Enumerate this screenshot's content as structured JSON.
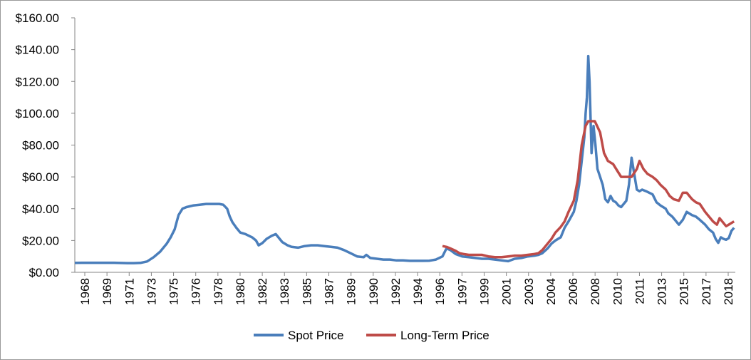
{
  "chart_data": {
    "type": "line",
    "title": "",
    "xlabel": "",
    "ylabel": "",
    "ylim": [
      0,
      160
    ],
    "xlim": [
      1968,
      2018.3
    ],
    "grid": false,
    "legend": "bottom",
    "y_ticks": [
      "$0.00",
      "$20.00",
      "$40.00",
      "$60.00",
      "$80.00",
      "$100.00",
      "$120.00",
      "$140.00",
      "$160.00"
    ],
    "x_tick_labels": [
      "1968",
      "1969",
      "1971",
      "1973",
      "1975",
      "1976",
      "1978",
      "1980",
      "1982",
      "1983",
      "1985",
      "1987",
      "1989",
      "1990",
      "1992",
      "1994",
      "1996",
      "1997",
      "1999",
      "2001",
      "2003",
      "2004",
      "2006",
      "2008",
      "2010",
      "2011",
      "2013",
      "2015",
      "2017",
      "2018"
    ],
    "series": [
      {
        "name": "Spot Price",
        "color": "#4a7ebb",
        "x": [
          1968.0,
          1968.5,
          1969.0,
          1970.0,
          1971.0,
          1972.0,
          1972.5,
          1973.0,
          1973.5,
          1974.0,
          1974.5,
          1975.0,
          1975.3,
          1975.6,
          1975.9,
          1976.2,
          1976.5,
          1977.0,
          1977.5,
          1978.0,
          1978.5,
          1979.0,
          1979.3,
          1979.6,
          1979.8,
          1980.0,
          1980.3,
          1980.6,
          1981.0,
          1981.5,
          1981.8,
          1982.0,
          1982.3,
          1982.6,
          1983.0,
          1983.3,
          1983.5,
          1983.8,
          1984.2,
          1984.5,
          1985.0,
          1985.5,
          1986.0,
          1986.5,
          1987.0,
          1987.5,
          1988.0,
          1988.5,
          1989.0,
          1989.5,
          1990.0,
          1990.2,
          1990.5,
          1991.0,
          1991.5,
          1992.0,
          1992.5,
          1993.0,
          1993.5,
          1994.0,
          1994.5,
          1995.0,
          1995.5,
          1996.0,
          1996.3,
          1996.6,
          1997.0,
          1997.5,
          1998.0,
          1998.5,
          1999.0,
          1999.5,
          2000.0,
          2000.5,
          2001.0,
          2001.5,
          2002.0,
          2002.5,
          2003.0,
          2003.3,
          2003.6,
          2004.0,
          2004.3,
          2004.6,
          2005.0,
          2005.3,
          2005.6,
          2006.0,
          2006.2,
          2006.4,
          2006.6,
          2006.8,
          2006.9,
          2007.0,
          2007.1,
          2007.2,
          2007.35,
          2007.5,
          2007.65,
          2007.8,
          2008.0,
          2008.2,
          2008.4,
          2008.6,
          2008.8,
          2009.0,
          2009.2,
          2009.4,
          2009.6,
          2009.8,
          2010.0,
          2010.2,
          2010.4,
          2010.6,
          2010.8,
          2011.0,
          2011.2,
          2011.5,
          2012.0,
          2012.3,
          2012.6,
          2013.0,
          2013.2,
          2013.5,
          2013.8,
          2014.0,
          2014.3,
          2014.6,
          2015.0,
          2015.3,
          2015.6,
          2016.0,
          2016.3,
          2016.6,
          2016.8,
          2017.0,
          2017.2,
          2017.4,
          2017.6,
          2017.8,
          2018.0,
          2018.2
        ],
        "values": [
          5.9,
          6.0,
          6.0,
          6.0,
          6.0,
          5.8,
          5.8,
          5.9,
          6.8,
          9.5,
          13.0,
          18.0,
          22.0,
          27.0,
          36.0,
          40.0,
          41.0,
          42.0,
          42.5,
          43.0,
          43.0,
          43.0,
          42.5,
          40.0,
          35.0,
          31.5,
          28.0,
          25.0,
          24.0,
          22.0,
          20.0,
          17.0,
          18.5,
          21.0,
          23.0,
          24.0,
          22.0,
          19.0,
          17.0,
          16.0,
          15.5,
          16.5,
          17.0,
          17.0,
          16.5,
          16.0,
          15.5,
          14.0,
          12.0,
          10.0,
          9.5,
          11.0,
          9.0,
          8.5,
          8.0,
          8.0,
          7.5,
          7.5,
          7.2,
          7.2,
          7.2,
          7.3,
          8.0,
          10.0,
          15.0,
          14.0,
          11.5,
          10.0,
          9.5,
          9.0,
          8.5,
          8.5,
          8.0,
          7.5,
          7.0,
          8.5,
          9.0,
          10.0,
          10.5,
          11.0,
          12.0,
          15.0,
          18.0,
          20.0,
          22.0,
          28.0,
          32.0,
          38.0,
          45.0,
          55.0,
          70.0,
          85.0,
          100.0,
          110.0,
          136.0,
          120.0,
          75.0,
          92.0,
          80.0,
          65.0,
          60.0,
          55.0,
          46.0,
          44.0,
          48.0,
          45.0,
          44.0,
          42.0,
          41.0,
          43.0,
          45.0,
          55.0,
          72.0,
          62.0,
          52.0,
          51.0,
          52.0,
          51.0,
          49.0,
          44.0,
          42.0,
          40.0,
          37.0,
          35.0,
          32.0,
          30.0,
          33.0,
          38.0,
          36.0,
          35.0,
          33.0,
          30.0,
          27.0,
          25.0,
          21.0,
          18.5,
          22.0,
          21.0,
          20.5,
          21.5,
          26.0,
          28.0
        ],
        "x_values_note": ""
      },
      {
        "name": "Long-Term Price",
        "color": "#be4b48",
        "x": [
          1996.0,
          1996.3,
          1996.6,
          1997.0,
          1997.3,
          1997.6,
          1998.0,
          1998.5,
          1999.0,
          1999.5,
          2000.0,
          2000.5,
          2001.0,
          2001.5,
          2002.0,
          2002.5,
          2003.0,
          2003.3,
          2003.6,
          2004.0,
          2004.3,
          2004.6,
          2005.0,
          2005.3,
          2005.6,
          2006.0,
          2006.3,
          2006.6,
          2006.9,
          2007.1,
          2007.3,
          2007.6,
          2008.0,
          2008.3,
          2008.6,
          2009.0,
          2009.3,
          2009.6,
          2010.0,
          2010.4,
          2010.8,
          2011.0,
          2011.3,
          2011.6,
          2012.0,
          2012.3,
          2012.6,
          2013.0,
          2013.3,
          2013.6,
          2014.0,
          2014.3,
          2014.6,
          2015.0,
          2015.3,
          2015.6,
          2016.0,
          2016.3,
          2016.6,
          2016.9,
          2017.1,
          2017.4,
          2017.6,
          2017.8,
          2018.0,
          2018.2
        ],
        "values": [
          16.5,
          16.0,
          15.0,
          13.5,
          12.0,
          11.5,
          11.0,
          11.0,
          11.0,
          10.0,
          9.5,
          9.5,
          10.0,
          10.5,
          10.5,
          11.0,
          11.5,
          12.0,
          14.0,
          18.0,
          21.0,
          25.0,
          28.5,
          32.0,
          38.0,
          45.0,
          58.0,
          80.0,
          92.0,
          95.0,
          95.0,
          95.0,
          88.0,
          75.0,
          70.0,
          68.0,
          64.0,
          60.0,
          60.0,
          60.0,
          65.0,
          70.0,
          65.0,
          62.0,
          60.0,
          58.0,
          55.0,
          52.0,
          48.0,
          46.0,
          45.0,
          50.0,
          50.0,
          46.0,
          44.0,
          43.0,
          38.0,
          35.0,
          32.0,
          30.0,
          34.0,
          31.0,
          29.0,
          30.0,
          31.0,
          32.0
        ]
      }
    ]
  },
  "legend": {
    "items": [
      {
        "label": "Spot Price",
        "color": "#4a7ebb"
      },
      {
        "label": "Long-Term Price",
        "color": "#be4b48"
      }
    ]
  }
}
